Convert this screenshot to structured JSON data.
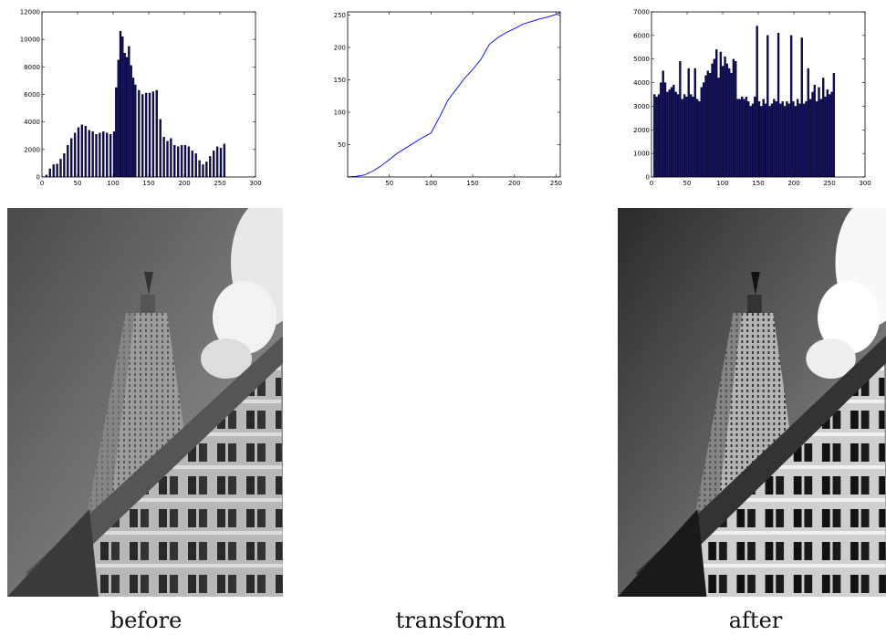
{
  "captions": {
    "before": "before",
    "transform": "transform",
    "after": "after"
  },
  "colors": {
    "bar_fill": "#0a0a66",
    "bar_edge": "#000000",
    "curve": "#0000ff",
    "axes": "#000000"
  },
  "chart_data": [
    {
      "type": "bar",
      "panel": "before",
      "xlabel": "",
      "ylabel": "",
      "xlim": [
        0,
        300
      ],
      "ylim": [
        0,
        12000
      ],
      "xticks": [
        0,
        50,
        100,
        150,
        200,
        250,
        300
      ],
      "yticks": [
        0,
        2000,
        4000,
        6000,
        8000,
        10000,
        12000
      ],
      "bin_width": 2.55,
      "x": [
        5,
        10,
        15,
        20,
        25,
        30,
        35,
        40,
        45,
        50,
        55,
        60,
        65,
        70,
        75,
        80,
        85,
        90,
        95,
        100,
        103,
        106,
        109,
        112,
        115,
        118,
        121,
        124,
        127,
        130,
        135,
        140,
        145,
        150,
        155,
        160,
        165,
        170,
        175,
        180,
        185,
        190,
        195,
        200,
        205,
        210,
        215,
        220,
        225,
        230,
        235,
        240,
        245,
        250,
        255
      ],
      "values": [
        150,
        600,
        900,
        950,
        1300,
        1700,
        2300,
        2800,
        3200,
        3600,
        3800,
        3700,
        3400,
        3300,
        3100,
        3200,
        3300,
        3200,
        3100,
        3300,
        6500,
        8500,
        10600,
        10200,
        9000,
        8700,
        9500,
        8100,
        7200,
        6700,
        6300,
        6000,
        6100,
        6100,
        6200,
        6300,
        4200,
        2900,
        2600,
        2800,
        2300,
        2200,
        2300,
        2300,
        2200,
        1900,
        1700,
        1200,
        900,
        1100,
        1500,
        1900,
        2200,
        2100,
        2400
      ]
    },
    {
      "type": "line",
      "panel": "transform",
      "xlabel": "",
      "ylabel": "",
      "xlim": [
        0,
        255
      ],
      "ylim": [
        0,
        255
      ],
      "xticks": [
        50,
        100,
        150,
        200,
        250
      ],
      "yticks": [
        50,
        100,
        150,
        200,
        250
      ],
      "x": [
        0,
        10,
        20,
        30,
        40,
        50,
        60,
        70,
        80,
        90,
        100,
        110,
        120,
        130,
        140,
        150,
        160,
        170,
        180,
        190,
        200,
        210,
        220,
        230,
        240,
        250,
        255
      ],
      "y": [
        0,
        1,
        3,
        9,
        17,
        27,
        37,
        45,
        53,
        61,
        68,
        92,
        118,
        135,
        152,
        166,
        182,
        205,
        215,
        223,
        229,
        236,
        240,
        244,
        247,
        251,
        254
      ]
    },
    {
      "type": "bar",
      "panel": "after",
      "xlabel": "",
      "ylabel": "",
      "xlim": [
        0,
        300
      ],
      "ylim": [
        0,
        7000
      ],
      "xticks": [
        0,
        50,
        100,
        150,
        200,
        250,
        300
      ],
      "yticks": [
        0,
        1000,
        2000,
        3000,
        4000,
        5000,
        6000,
        7000
      ],
      "bin_width": 2.55,
      "x": [
        3,
        6,
        9,
        12,
        15,
        18,
        21,
        24,
        27,
        30,
        33,
        36,
        39,
        42,
        45,
        48,
        51,
        54,
        57,
        60,
        63,
        66,
        69,
        72,
        75,
        78,
        81,
        84,
        87,
        90,
        93,
        96,
        99,
        102,
        105,
        108,
        111,
        114,
        117,
        120,
        123,
        126,
        129,
        132,
        135,
        138,
        141,
        144,
        147,
        150,
        153,
        156,
        159,
        162,
        165,
        168,
        171,
        174,
        177,
        180,
        183,
        186,
        189,
        192,
        195,
        198,
        201,
        204,
        207,
        210,
        213,
        216,
        219,
        222,
        225,
        228,
        231,
        234,
        237,
        240,
        243,
        246,
        249,
        252,
        255
      ],
      "values": [
        3500,
        3400,
        3500,
        4000,
        4500,
        4000,
        3600,
        3700,
        3800,
        3900,
        3600,
        3500,
        4900,
        3300,
        3500,
        3400,
        4600,
        3500,
        3400,
        4600,
        3300,
        3200,
        3800,
        4000,
        4300,
        4500,
        4400,
        4800,
        5000,
        5400,
        4200,
        5300,
        4700,
        5100,
        4800,
        4600,
        4400,
        5000,
        4900,
        3300,
        3300,
        3400,
        3300,
        3400,
        3200,
        3000,
        3100,
        3400,
        6400,
        3200,
        3000,
        3300,
        3100,
        6000,
        3000,
        3100,
        3300,
        3200,
        6100,
        3100,
        3200,
        3000,
        3200,
        3100,
        6000,
        3200,
        3000,
        3300,
        3100,
        5900,
        3100,
        3200,
        4600,
        3300,
        3600,
        3900,
        3200,
        3800,
        3300,
        4200,
        3400,
        3700,
        3500,
        3600,
        4400
      ]
    }
  ]
}
